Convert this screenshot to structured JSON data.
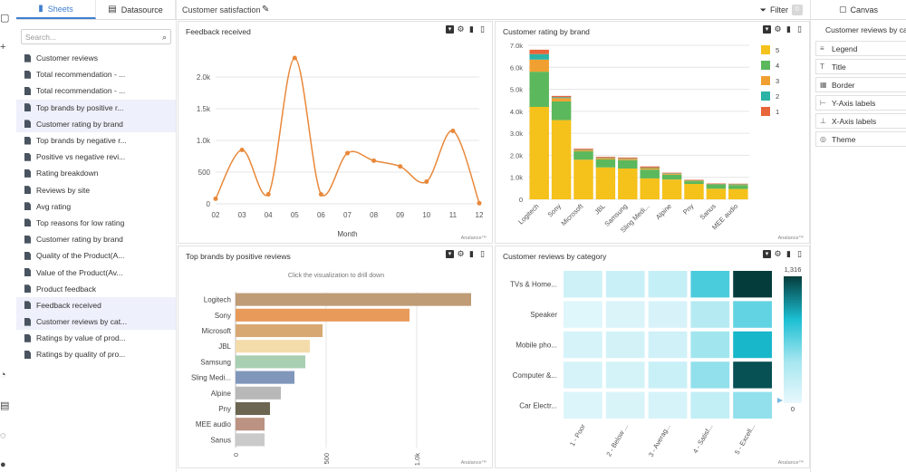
{
  "sheets_panel": {
    "tabs": [
      {
        "label": "Sheets",
        "icon": "document-icon",
        "active": true
      },
      {
        "label": "Datasource",
        "icon": "database-icon",
        "active": false
      }
    ],
    "search_placeholder": "Search...",
    "items": [
      {
        "label": "Customer reviews",
        "selected": false
      },
      {
        "label": "Total recommendation - ...",
        "selected": false
      },
      {
        "label": "Total recommendation - ...",
        "selected": false
      },
      {
        "label": "Top brands by positive r...",
        "selected": true
      },
      {
        "label": "Customer rating by brand",
        "selected": true
      },
      {
        "label": "Top brands by negative r...",
        "selected": false
      },
      {
        "label": "Positive vs negative revi...",
        "selected": false
      },
      {
        "label": "Rating breakdown",
        "selected": false
      },
      {
        "label": "Reviews by site",
        "selected": false
      },
      {
        "label": "Avg rating",
        "selected": false
      },
      {
        "label": "Top reasons for low rating",
        "selected": false
      },
      {
        "label": "Customer rating by brand",
        "selected": false
      },
      {
        "label": "Quality of the Product(A...",
        "selected": false
      },
      {
        "label": "Value of the Product(Av...",
        "selected": false
      },
      {
        "label": "Product feedback",
        "selected": false
      },
      {
        "label": "Feedback received",
        "selected": true
      },
      {
        "label": "Customer reviews by cat...",
        "selected": true
      },
      {
        "label": "Ratings by value of prod...",
        "selected": false
      },
      {
        "label": "Ratings by quality of pro...",
        "selected": false
      }
    ]
  },
  "dashboard": {
    "title": "Customer satisfaction",
    "filter_label": "Filter",
    "filter_count": "0"
  },
  "widgets": {
    "feedback": {
      "title": "Feedback received",
      "brand": "Analance™"
    },
    "rating_by_brand": {
      "title": "Customer rating by brand",
      "brand": "Analance™"
    },
    "top_brands": {
      "title": "Top brands by positive reviews",
      "hint": "Click the visualization to drill down",
      "brand": "Analance™"
    },
    "reviews_by_category": {
      "title": "Customer reviews by category",
      "brand": "Analance™"
    }
  },
  "props_panel": {
    "tab": "Canvas",
    "title": "Customer reviews by cat",
    "items": [
      {
        "label": "Legend",
        "icon": "legend-icon"
      },
      {
        "label": "Title",
        "icon": "title-icon"
      },
      {
        "label": "Border",
        "icon": "border-icon"
      },
      {
        "label": "Y-Axis labels",
        "icon": "y-axis-icon"
      },
      {
        "label": "X-Axis labels",
        "icon": "x-axis-icon"
      },
      {
        "label": "Theme",
        "icon": "theme-icon"
      }
    ]
  },
  "colors": {
    "accent": "#3f7fd0",
    "line": "#e8883a",
    "rating_5": "#f5c11b",
    "rating_4": "#5cb85c",
    "rating_3": "#f0a030",
    "rating_2": "#2ab3a6",
    "rating_1": "#e8643a"
  },
  "chart_data": [
    {
      "id": "feedback",
      "type": "line",
      "x": [
        "02",
        "03",
        "04",
        "05",
        "06",
        "07",
        "08",
        "09",
        "10",
        "11",
        "12"
      ],
      "values": [
        80,
        850,
        150,
        2300,
        150,
        800,
        680,
        590,
        350,
        1150,
        10
      ],
      "xlabel": "Month",
      "ylim": [
        0,
        2500
      ],
      "yticks": [
        "0",
        "500",
        "1.0k",
        "1.5k",
        "2.0k"
      ],
      "grid": true
    },
    {
      "id": "rating_by_brand",
      "type": "bar",
      "stacked": true,
      "categories": [
        "Logitech",
        "Sony",
        "Microsoft",
        "JBL",
        "Samsung",
        "Sling Medi...",
        "Alpine",
        "Pny",
        "Sanus",
        "MEE audio"
      ],
      "series": [
        {
          "name": "5",
          "values": [
            4200,
            3600,
            1800,
            1450,
            1400,
            950,
            900,
            700,
            480,
            470
          ]
        },
        {
          "name": "4",
          "values": [
            1600,
            850,
            380,
            360,
            380,
            400,
            220,
            120,
            180,
            180
          ]
        },
        {
          "name": "3",
          "values": [
            550,
            150,
            60,
            60,
            60,
            70,
            50,
            40,
            30,
            30
          ]
        },
        {
          "name": "2",
          "values": [
            250,
            40,
            20,
            20,
            20,
            25,
            15,
            10,
            10,
            10
          ]
        },
        {
          "name": "1",
          "values": [
            200,
            60,
            40,
            40,
            40,
            50,
            25,
            20,
            20,
            20
          ]
        }
      ],
      "ylim": [
        0,
        7000
      ],
      "yticks": [
        "0",
        "1.0k",
        "2.0k",
        "3.0k",
        "4.0k",
        "5.0k",
        "6.0k",
        "7.0k"
      ],
      "legend": "top-right",
      "grid": true
    },
    {
      "id": "top_brands",
      "type": "bar",
      "orientation": "horizontal",
      "categories": [
        "Logitech",
        "Sony",
        "Microsoft",
        "JBL",
        "Samsung",
        "Sling Medi...",
        "Alpine",
        "Pny",
        "MEE audio",
        "Sanus"
      ],
      "values": [
        1300,
        960,
        480,
        410,
        385,
        325,
        250,
        190,
        160,
        160
      ],
      "colors": [
        "#bf9b76",
        "#e89a5a",
        "#d8a872",
        "#f3dcaa",
        "#a8cfb2",
        "#8097bb",
        "#b8b8b8",
        "#6b6552",
        "#bc9282",
        "#cacaca"
      ],
      "xticks": [
        "0",
        "500",
        "1.0k"
      ],
      "xlim": [
        0,
        1350
      ],
      "grid": true
    },
    {
      "id": "reviews_by_category",
      "type": "heatmap",
      "rows": [
        "TVs & Home...",
        "Speaker",
        "Mobile pho...",
        "Computer &...",
        "Car Electr..."
      ],
      "cols": [
        "1 - Poor",
        "2 - Below ...",
        "3 - Averag...",
        "4 - Satisf...",
        "5 - Excell..."
      ],
      "values": [
        [
          180,
          200,
          230,
          720,
          1316
        ],
        [
          60,
          90,
          110,
          330,
          650
        ],
        [
          120,
          140,
          160,
          450,
          900
        ],
        [
          120,
          130,
          200,
          500,
          1250
        ],
        [
          80,
          100,
          120,
          250,
          500
        ]
      ],
      "scale_min": "0",
      "scale_max": "1,316",
      "legend": "right"
    }
  ]
}
